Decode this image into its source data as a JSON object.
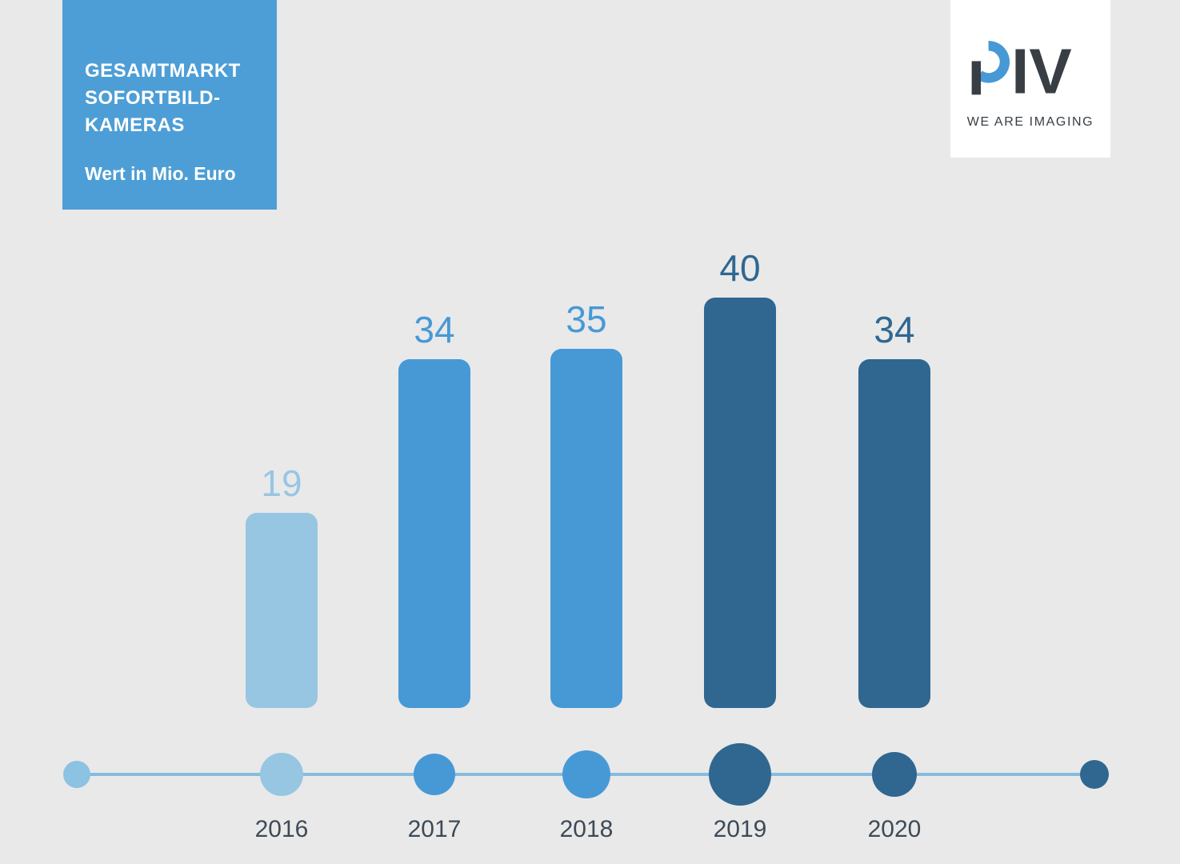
{
  "header": {
    "title_lines": [
      "GESAMTMARKT",
      "SOFORTBILD-",
      "KAMERAS"
    ],
    "subtitle": "Wert in Mio. Euro"
  },
  "logo": {
    "letters": "IV",
    "tagline": "WE ARE IMAGING"
  },
  "colors": {
    "background": "#e9e9e9",
    "title_box": "#4d9ed6",
    "logo_ink": "#383e44",
    "logo_accent": "#4799d6",
    "year_label": "#3e4a56",
    "timeline_line": "#86bcde"
  },
  "chart_data": {
    "type": "bar",
    "title": "Gesamtmarkt Sofortbildkameras",
    "ylabel": "Wert in Mio. Euro",
    "categories": [
      "2016",
      "2017",
      "2018",
      "2019",
      "2020"
    ],
    "values": [
      19,
      34,
      35,
      40,
      34
    ],
    "ylim": [
      0,
      42
    ],
    "grid": false,
    "legend": false,
    "bar_colors": [
      "#97c6e3",
      "#4799d6",
      "#4799d6",
      "#2f6791",
      "#2f6791"
    ],
    "label_colors": [
      "#97c6e3",
      "#4799d6",
      "#4799d6",
      "#2f6791",
      "#2f6791"
    ],
    "timeline": {
      "line_color": "#86bcde",
      "left_end_color": "#8cc2e2",
      "right_end_color": "#2f6791"
    }
  }
}
